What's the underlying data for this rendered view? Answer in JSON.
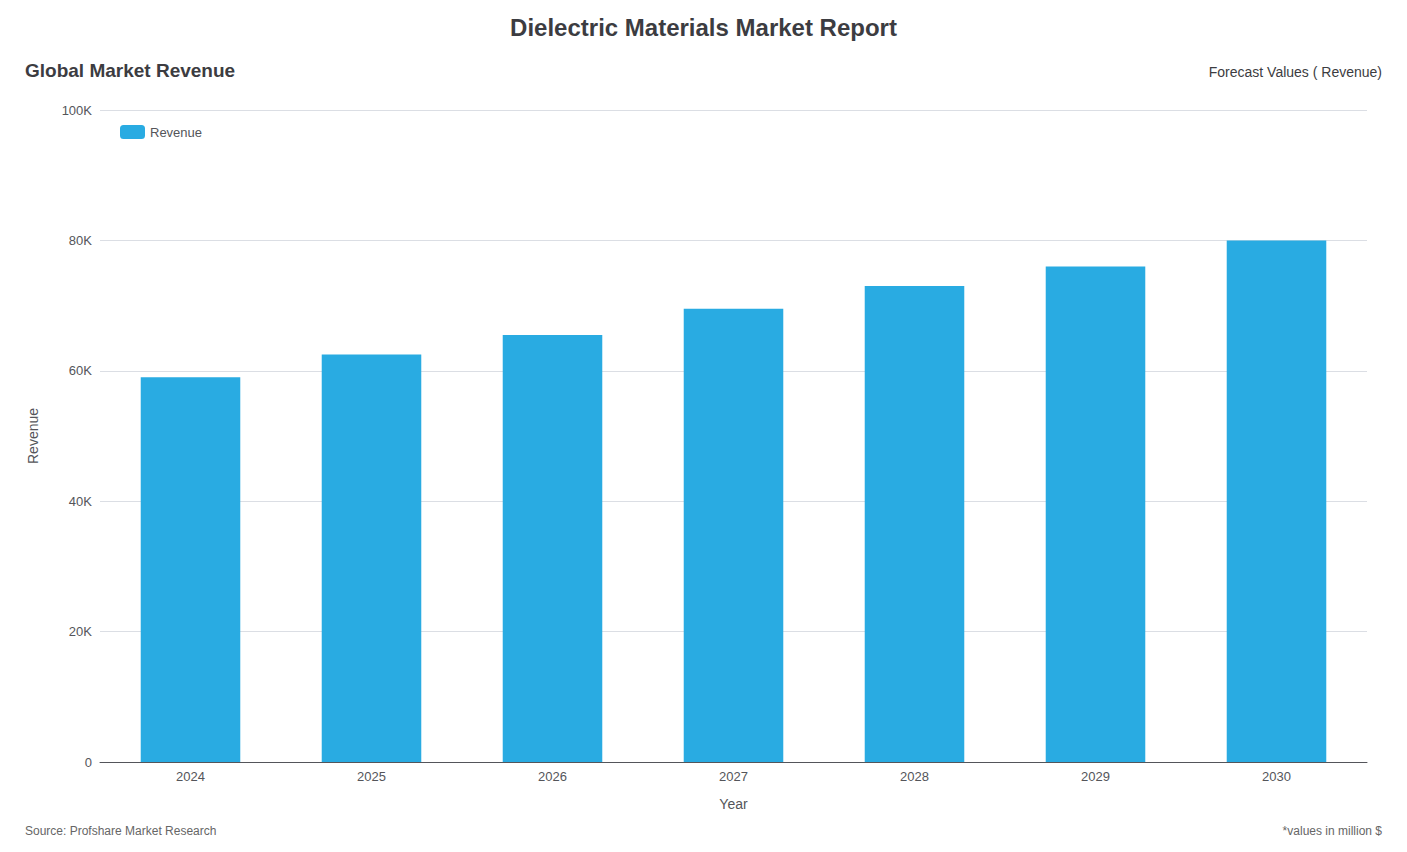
{
  "chart_data": {
    "type": "bar",
    "title": "Dielectric Materials Market Report",
    "subtitle": [
      "Global Market Revenue",
      "Forecast Values ( Revenue)"
    ],
    "annotations": [
      "Source: Profshare Market Research",
      "*values in million $"
    ],
    "x_label": "Year",
    "y_label": "Revenue",
    "categories": [
      "2024",
      "2025",
      "2026",
      "2027",
      "2028",
      "2029",
      "2030"
    ],
    "series": [
      {
        "name": "Revenue",
        "color": "#29ABE2",
        "values": [
          59000,
          62500,
          65500,
          69500,
          73000,
          76000,
          80000
        ]
      }
    ],
    "ylim": [
      0,
      100000
    ],
    "yticks": [
      0,
      {
        "value": 20000,
        "label": "20K"
      },
      {
        "value": 40000,
        "label": "40K"
      },
      {
        "value": 60000,
        "label": "60K"
      },
      {
        "value": 80000,
        "label": "80K"
      },
      {
        "value": 100000,
        "label": "100K"
      }
    ],
    "grid": true,
    "legend": "upper left"
  }
}
